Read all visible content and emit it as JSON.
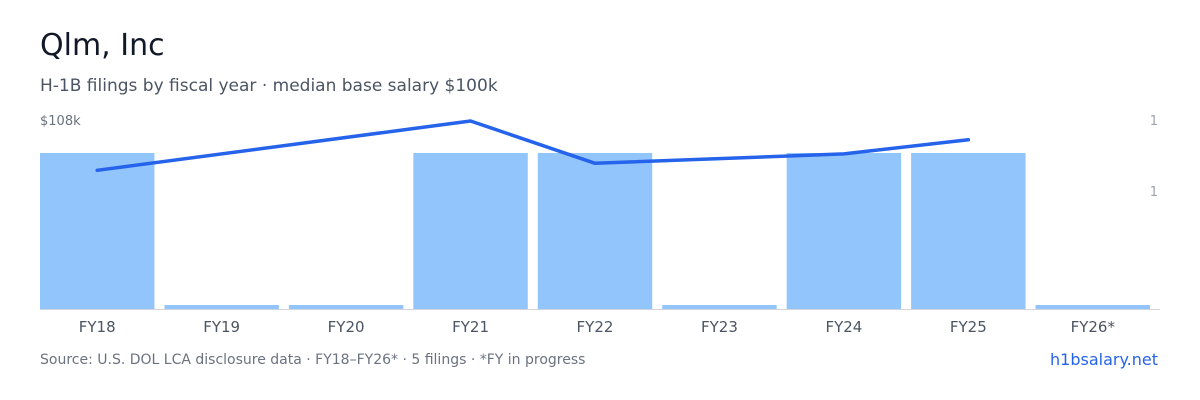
{
  "header": {
    "title": "Qlm, Inc",
    "subtitle": "H-1B filings by fiscal year · median base salary $100k"
  },
  "footer": {
    "source": "Source: U.S. DOL LCA disclosure data · FY18–FY26* · 5 filings · *FY in progress",
    "link": "h1bsalary.net"
  },
  "chart_data": {
    "type": "bar",
    "categories": [
      "FY18",
      "FY19",
      "FY20",
      "FY21",
      "FY22",
      "FY23",
      "FY24",
      "FY25",
      "FY26*"
    ],
    "series": [
      {
        "type": "bar",
        "axis": "right",
        "values": [
          1,
          0,
          0,
          1,
          1,
          0,
          1,
          1,
          0
        ]
      },
      {
        "type": "line",
        "axis": "left",
        "values": [
          97.5,
          null,
          null,
          108,
          99,
          null,
          101,
          104,
          null
        ]
      }
    ],
    "left_axis": {
      "tick_label": "$108k",
      "max": 108,
      "min": 68
    },
    "right_axis": {
      "tick_labels": [
        "1",
        "1"
      ]
    },
    "colors": {
      "bar": "#93c5fd",
      "line": "#2563eb",
      "axis": "#d1d5db",
      "tick": "#9ca3af",
      "xtick": "#4b5563"
    }
  }
}
